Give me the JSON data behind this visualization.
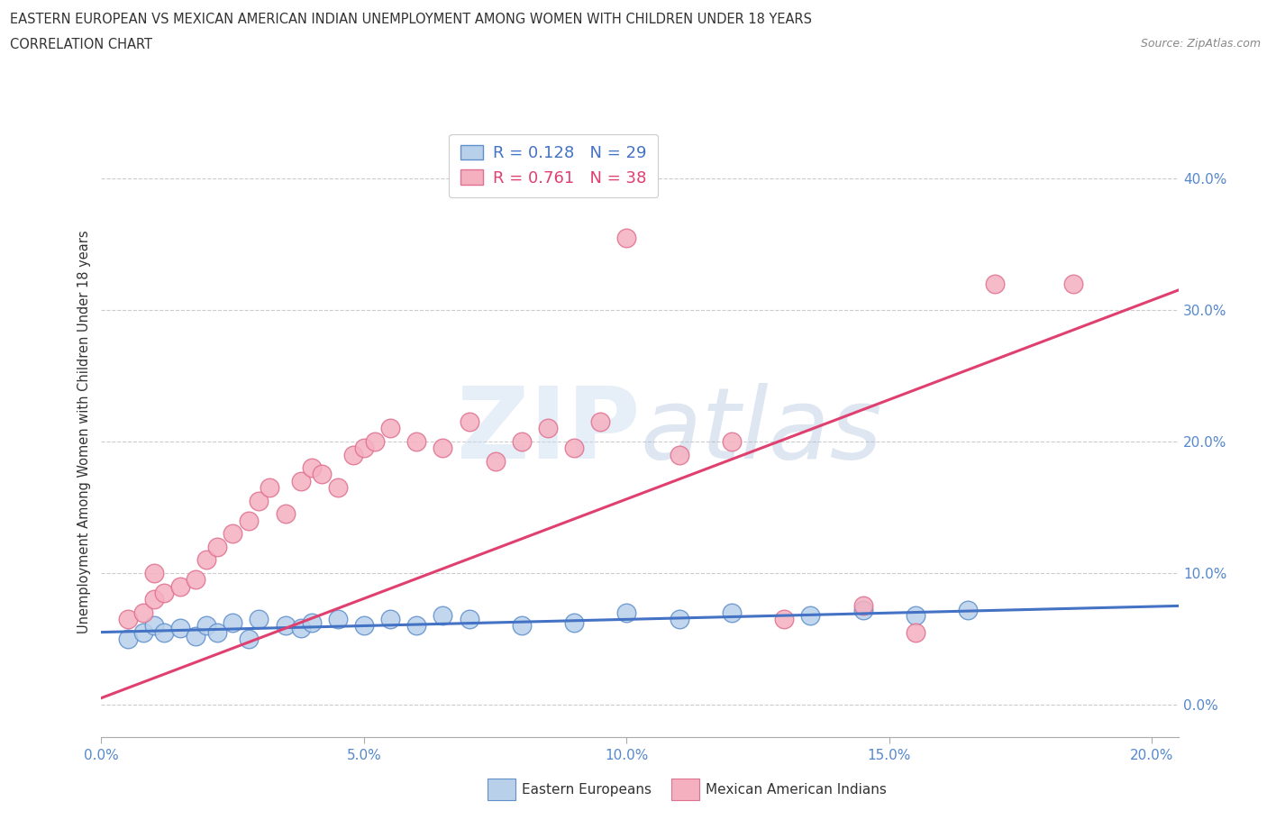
{
  "title1": "EASTERN EUROPEAN VS MEXICAN AMERICAN INDIAN UNEMPLOYMENT AMONG WOMEN WITH CHILDREN UNDER 18 YEARS",
  "title2": "CORRELATION CHART",
  "source": "Source: ZipAtlas.com",
  "ylabel": "Unemployment Among Women with Children Under 18 years",
  "xlim": [
    0.0,
    0.205
  ],
  "ylim": [
    -0.025,
    0.44
  ],
  "xticks": [
    0.0,
    0.05,
    0.1,
    0.15,
    0.2
  ],
  "yticks_right": [
    0.0,
    0.1,
    0.2,
    0.3,
    0.4
  ],
  "blue_R": 0.128,
  "blue_N": 29,
  "pink_R": 0.761,
  "pink_N": 38,
  "legend_label_blue": "Eastern Europeans",
  "legend_label_pink": "Mexican American Indians",
  "blue_fill": "#b8d0ea",
  "pink_fill": "#f5b0c0",
  "blue_edge": "#6090cc",
  "pink_edge": "#e07090",
  "blue_line": "#4472c4",
  "pink_line": "#e04070",
  "watermark": "ZIPAtlas",
  "marker_size": 220,
  "blue_scatter_x": [
    0.005,
    0.008,
    0.01,
    0.012,
    0.015,
    0.018,
    0.02,
    0.022,
    0.025,
    0.028,
    0.03,
    0.035,
    0.038,
    0.04,
    0.045,
    0.05,
    0.055,
    0.06,
    0.065,
    0.07,
    0.08,
    0.09,
    0.1,
    0.11,
    0.12,
    0.135,
    0.145,
    0.155,
    0.165
  ],
  "blue_scatter_y": [
    0.05,
    0.055,
    0.06,
    0.055,
    0.058,
    0.052,
    0.06,
    0.055,
    0.062,
    0.05,
    0.065,
    0.06,
    0.058,
    0.062,
    0.065,
    0.06,
    0.065,
    0.06,
    0.068,
    0.065,
    0.06,
    0.062,
    0.07,
    0.065,
    0.07,
    0.068,
    0.072,
    0.068,
    0.072
  ],
  "pink_scatter_x": [
    0.005,
    0.008,
    0.01,
    0.01,
    0.012,
    0.015,
    0.018,
    0.02,
    0.022,
    0.025,
    0.028,
    0.03,
    0.032,
    0.035,
    0.038,
    0.04,
    0.042,
    0.045,
    0.048,
    0.05,
    0.052,
    0.055,
    0.06,
    0.065,
    0.07,
    0.075,
    0.08,
    0.085,
    0.09,
    0.095,
    0.1,
    0.11,
    0.12,
    0.13,
    0.145,
    0.155,
    0.17,
    0.185
  ],
  "pink_scatter_y": [
    0.065,
    0.07,
    0.08,
    0.1,
    0.085,
    0.09,
    0.095,
    0.11,
    0.12,
    0.13,
    0.14,
    0.155,
    0.165,
    0.145,
    0.17,
    0.18,
    0.175,
    0.165,
    0.19,
    0.195,
    0.2,
    0.21,
    0.2,
    0.195,
    0.215,
    0.185,
    0.2,
    0.21,
    0.195,
    0.215,
    0.355,
    0.19,
    0.2,
    0.065,
    0.075,
    0.055,
    0.32,
    0.32
  ],
  "blue_trend_x": [
    0.0,
    0.205
  ],
  "blue_trend_y": [
    0.055,
    0.075
  ],
  "pink_trend_x": [
    0.0,
    0.205
  ],
  "pink_trend_y": [
    0.005,
    0.315
  ]
}
